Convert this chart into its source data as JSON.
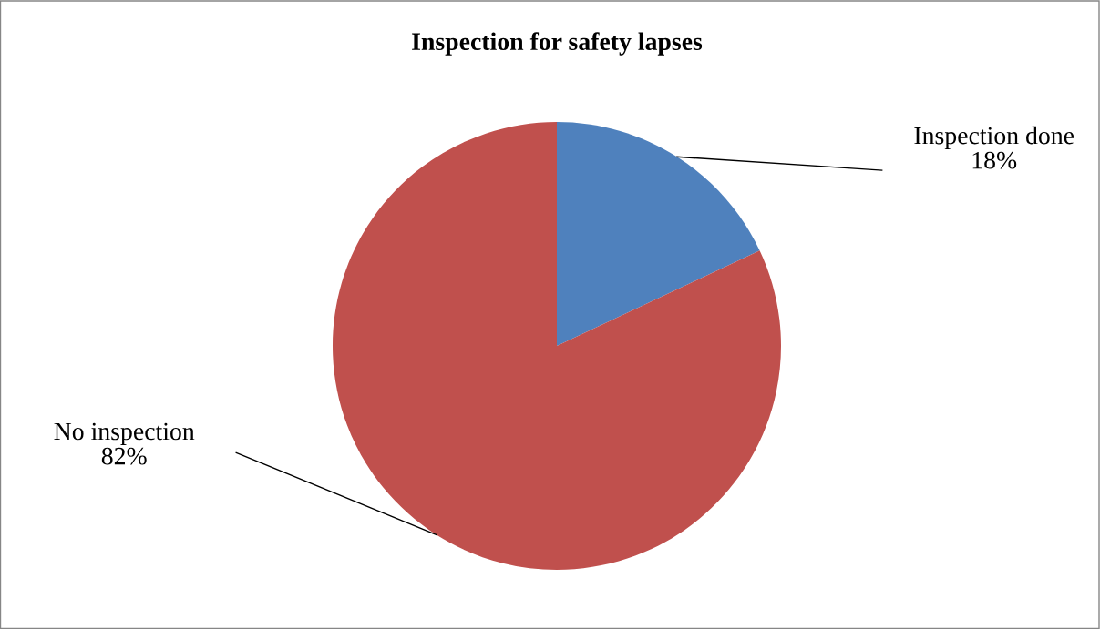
{
  "chart_data": {
    "type": "pie",
    "title": "Inspection for safety lapses",
    "categories": [
      "Inspection done",
      "No inspection"
    ],
    "values": [
      18,
      82
    ],
    "value_labels": [
      "18%",
      "82%"
    ],
    "colors": [
      "#4f81bd",
      "#c0504d"
    ],
    "legend": false
  }
}
